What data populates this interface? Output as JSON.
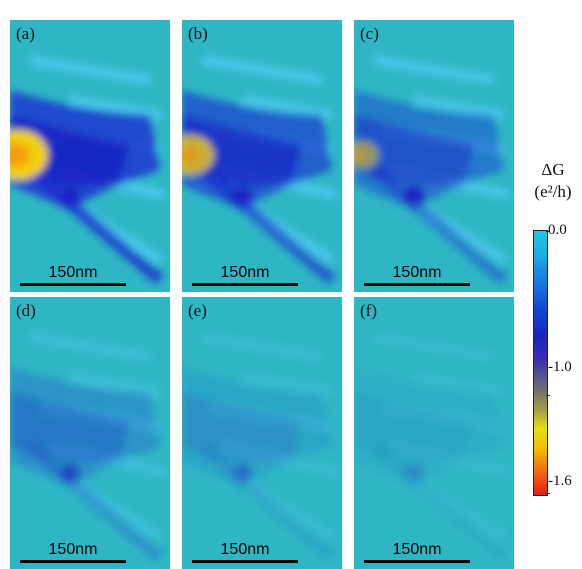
{
  "panels": [
    {
      "label": "(a)",
      "scale": "150nm",
      "intensity": 1.0
    },
    {
      "label": "(b)",
      "scale": "150nm",
      "intensity": 0.8
    },
    {
      "label": "(c)",
      "scale": "150nm",
      "intensity": 0.55
    },
    {
      "label": "(d)",
      "scale": "150nm",
      "intensity": 0.3
    },
    {
      "label": "(e)",
      "scale": "150nm",
      "intensity": 0.15
    },
    {
      "label": "(f)",
      "scale": "150nm",
      "intensity": 0.07
    }
  ],
  "colorbar": {
    "title_line1": "ΔG",
    "title_line2": "(e²/h)",
    "ticks": [
      "0.0",
      "-1.0",
      "-1.6"
    ],
    "range": [
      -1.6,
      0.0
    ],
    "colors": {
      "zero": "#1ec9e3",
      "mid": "#e8e010",
      "min": "#e81c10"
    }
  }
}
